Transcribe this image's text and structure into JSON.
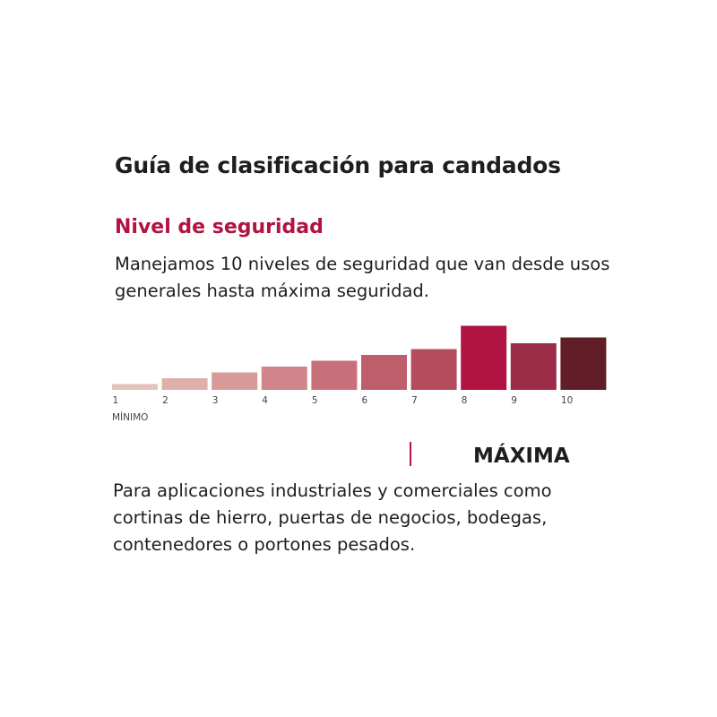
{
  "heading": {
    "title": "Guía de clasificación para candados",
    "subtitle": "Nivel de seguridad",
    "description": "Manejamos 10 niveles de seguridad que van desde usos generales hasta máxima seguridad."
  },
  "chart_data": {
    "type": "bar",
    "categories": [
      "1",
      "2",
      "3",
      "4",
      "5",
      "6",
      "7",
      "8",
      "9",
      "10"
    ],
    "values": [
      1,
      2,
      3,
      4,
      5,
      6,
      7,
      11,
      8,
      9
    ],
    "highlighted_level": "8",
    "min_label": "MÍNIMO",
    "colors": [
      "#e5c2bb",
      "#dfb0aa",
      "#d79a98",
      "#cf8589",
      "#c77079",
      "#be5e6b",
      "#b54c5d",
      "#b11442",
      "#9c2d49",
      "#621e28"
    ],
    "ylim": [
      0,
      12
    ]
  },
  "level_info": {
    "title": "MÁXIMA",
    "text": "Para aplicaciones industriales y comerciales como cortinas de hierro, puertas de negocios, bodegas, contenedores o portones pesados."
  },
  "colors": {
    "accent": "#b11442",
    "text": "#1e1e1e"
  }
}
